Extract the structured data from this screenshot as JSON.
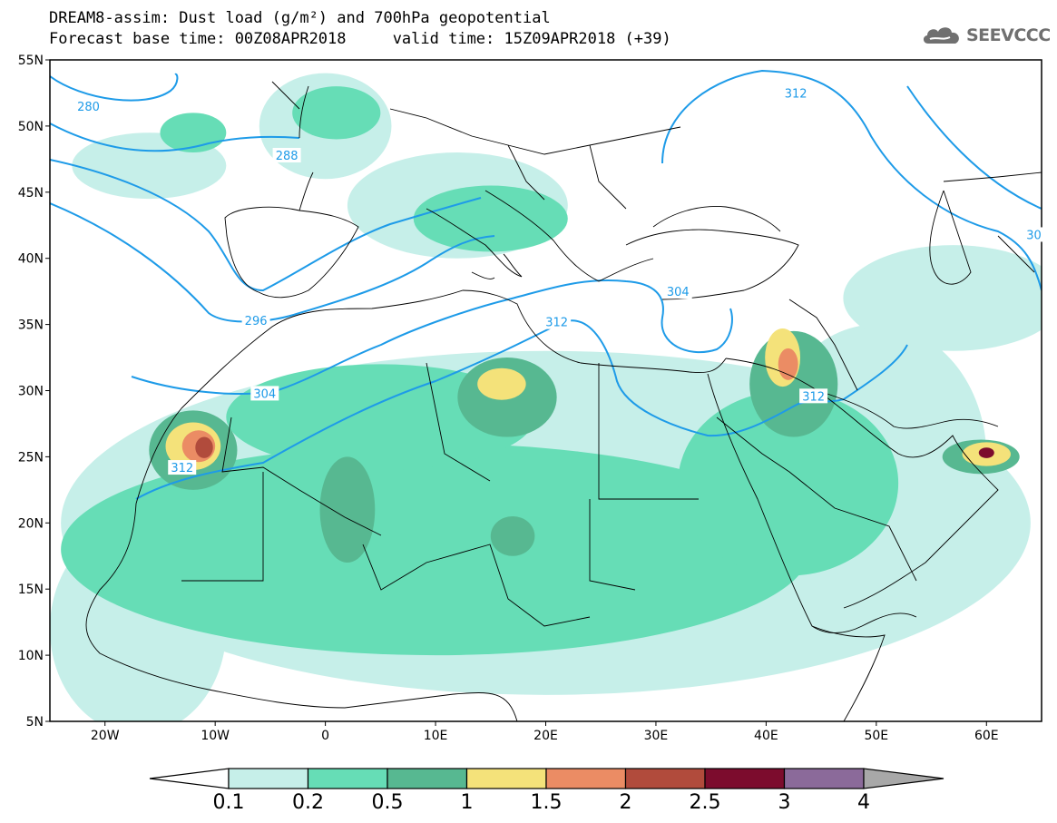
{
  "title": {
    "line1": "DREAM8-assim: Dust load (g/m²) and 700hPa geopotential",
    "line2": "Forecast base time: 00Z08APR2018     valid time: 15Z09APR2018 (+39)"
  },
  "logo": {
    "text": "SEEVCCC",
    "icon": "cloud-logo-icon"
  },
  "axes": {
    "lon_range": [
      -25,
      65
    ],
    "lat_range": [
      5,
      55
    ],
    "lat_ticks": [
      {
        "value": 55,
        "label": "55N"
      },
      {
        "value": 50,
        "label": "50N"
      },
      {
        "value": 45,
        "label": "45N"
      },
      {
        "value": 40,
        "label": "40N"
      },
      {
        "value": 35,
        "label": "35N"
      },
      {
        "value": 30,
        "label": "30N"
      },
      {
        "value": 25,
        "label": "25N"
      },
      {
        "value": 20,
        "label": "20N"
      },
      {
        "value": 15,
        "label": "15N"
      },
      {
        "value": 10,
        "label": "10N"
      },
      {
        "value": 5,
        "label": "5N"
      }
    ],
    "lon_ticks": [
      {
        "value": -20,
        "label": "20W"
      },
      {
        "value": -10,
        "label": "10W"
      },
      {
        "value": 0,
        "label": "0"
      },
      {
        "value": 10,
        "label": "10E"
      },
      {
        "value": 20,
        "label": "20E"
      },
      {
        "value": 30,
        "label": "30E"
      },
      {
        "value": 40,
        "label": "40E"
      },
      {
        "value": 50,
        "label": "50E"
      },
      {
        "value": 60,
        "label": "60E"
      }
    ]
  },
  "colorbar": {
    "levels": [
      "0.1",
      "0.2",
      "0.5",
      "1",
      "1.5",
      "2",
      "2.5",
      "3",
      "4"
    ],
    "colors": [
      "#c6efe9",
      "#66ddb6",
      "#57b891",
      "#f4e27a",
      "#eb8c64",
      "#b14b3c",
      "#7c0c2d",
      "#8b6a9a"
    ],
    "under_color": "#ffffff",
    "over_color": "#a8a8a8"
  },
  "contour_labels": [
    {
      "text": "280",
      "lon": -21.5,
      "lat": 51.5
    },
    {
      "text": "288",
      "lon": -3.5,
      "lat": 47.8
    },
    {
      "text": "296",
      "lon": -6.3,
      "lat": 35.3
    },
    {
      "text": "304",
      "lon": -5.5,
      "lat": 29.8
    },
    {
      "text": "312",
      "lon": -13,
      "lat": 24.2
    },
    {
      "text": "312",
      "lon": 21,
      "lat": 35.2
    },
    {
      "text": "304",
      "lon": 32,
      "lat": 37.5
    },
    {
      "text": "312",
      "lon": 42.7,
      "lat": 52.5
    },
    {
      "text": "312",
      "lon": 44.3,
      "lat": 29.6
    },
    {
      "text": "30",
      "lon": 64.3,
      "lat": 41.8
    }
  ],
  "dust_areas": [
    {
      "level": 1,
      "center": [
        -16,
        47
      ],
      "radius": [
        7,
        2.5
      ]
    },
    {
      "level": 2,
      "center": [
        -12,
        49.5
      ],
      "radius": [
        3,
        1.5
      ]
    },
    {
      "level": 1,
      "center": [
        0,
        50
      ],
      "radius": [
        6,
        4
      ]
    },
    {
      "level": 1,
      "center": [
        12,
        44
      ],
      "radius": [
        10,
        4
      ]
    },
    {
      "level": 1,
      "center": [
        20,
        20
      ],
      "radius": [
        44,
        13
      ]
    },
    {
      "level": 1,
      "center": [
        50,
        25
      ],
      "radius": [
        10,
        10
      ]
    },
    {
      "level": 1,
      "center": [
        57,
        37
      ],
      "radius": [
        10,
        4
      ]
    },
    {
      "level": 1,
      "center": [
        -17,
        12
      ],
      "radius": [
        8,
        8
      ]
    },
    {
      "level": 2,
      "center": [
        10,
        18
      ],
      "radius": [
        34,
        8
      ]
    },
    {
      "level": 2,
      "center": [
        5,
        28
      ],
      "radius": [
        14,
        4
      ]
    },
    {
      "level": 2,
      "center": [
        42,
        23
      ],
      "radius": [
        10,
        7
      ]
    },
    {
      "level": 2,
      "center": [
        15,
        43
      ],
      "radius": [
        7,
        2.5
      ]
    },
    {
      "level": 2,
      "center": [
        1,
        51
      ],
      "radius": [
        4,
        2
      ]
    },
    {
      "level": 3,
      "center": [
        16.5,
        29.5
      ],
      "radius": [
        4.5,
        3
      ]
    },
    {
      "level": 3,
      "center": [
        2,
        21
      ],
      "radius": [
        2.5,
        4
      ]
    },
    {
      "level": 3,
      "center": [
        -12,
        25.5
      ],
      "radius": [
        4,
        3
      ]
    },
    {
      "level": 3,
      "center": [
        42.5,
        30.5
      ],
      "radius": [
        4,
        4
      ]
    },
    {
      "level": 3,
      "center": [
        59.5,
        25
      ],
      "radius": [
        3.5,
        1.3
      ]
    },
    {
      "level": 3,
      "center": [
        17,
        19
      ],
      "radius": [
        2,
        1.5
      ]
    },
    {
      "level": 4,
      "center": [
        16,
        30.5
      ],
      "radius": [
        2.2,
        1.2
      ]
    },
    {
      "level": 4,
      "center": [
        -12,
        25.8
      ],
      "radius": [
        2.5,
        1.8
      ]
    },
    {
      "level": 4,
      "center": [
        41.5,
        32.5
      ],
      "radius": [
        1.6,
        2.2
      ]
    },
    {
      "level": 4,
      "center": [
        60,
        25.2
      ],
      "radius": [
        2.2,
        0.9
      ]
    },
    {
      "level": 5,
      "center": [
        -11.5,
        25.8
      ],
      "radius": [
        1.5,
        1.2
      ]
    },
    {
      "level": 5,
      "center": [
        42,
        32
      ],
      "radius": [
        0.9,
        1.2
      ]
    },
    {
      "level": 6,
      "center": [
        -11,
        25.7
      ],
      "radius": [
        0.8,
        0.8
      ]
    },
    {
      "level": 7,
      "center": [
        60,
        25.3
      ],
      "radius": [
        0.7,
        0.4
      ]
    }
  ]
}
